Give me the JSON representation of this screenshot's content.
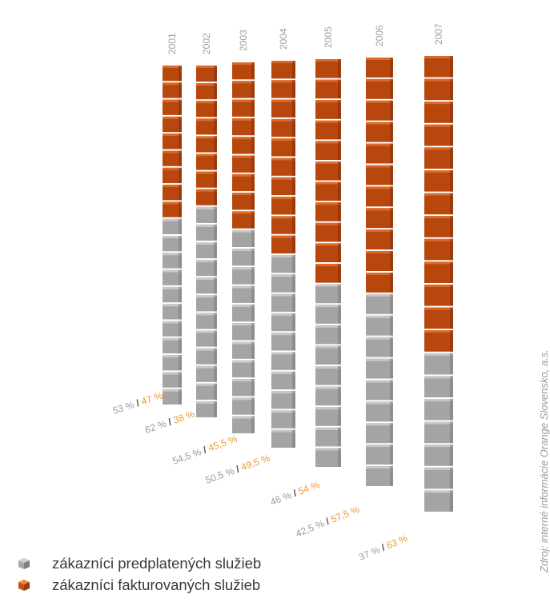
{
  "chart_data": {
    "type": "bar",
    "stacked": true,
    "categories": [
      "2001",
      "2002",
      "2003",
      "2004",
      "2005",
      "2006",
      "2007"
    ],
    "series": [
      {
        "name": "zákazníci predplatených služieb",
        "values": [
          53,
          62,
          54.5,
          50.5,
          46,
          42.5,
          37
        ],
        "color": "#9a9a9a"
      },
      {
        "name": "zákazníci fakturovaných služieb",
        "values": [
          47,
          38,
          45.5,
          49.5,
          54,
          57.5,
          63
        ],
        "color": "#b8470e"
      }
    ],
    "labels": [
      {
        "prepaid": "53 %",
        "postpaid": "47 %"
      },
      {
        "prepaid": "62 %",
        "postpaid": "38 %"
      },
      {
        "prepaid": "54,5 %",
        "postpaid": "45,5 %"
      },
      {
        "prepaid": "50,5 %",
        "postpaid": "49,5 %"
      },
      {
        "prepaid": "46 %",
        "postpaid": "54 %"
      },
      {
        "prepaid": "42,5 %",
        "postpaid": "57,5 %"
      },
      {
        "prepaid": "37 %",
        "postpaid": "63 %"
      }
    ],
    "separator": "/",
    "unit": "%",
    "legend_position": "bottom-left"
  },
  "legend": [
    {
      "label": "zákazníci predplatených služieb",
      "color": "#9a9a9a",
      "icon": "gray-cube-icon"
    },
    {
      "label": "zákazníci fakturovaných služieb",
      "color": "#c4541a",
      "icon": "orange-cube-icon"
    }
  ],
  "source": "Zdroj: interné informácie Orange Slovensko, a.s.",
  "colors": {
    "prepaid": "#9a9a9a",
    "postpaid": "#b8470e",
    "label_gray": "#9a9a9a",
    "label_orange": "#f0962e"
  }
}
